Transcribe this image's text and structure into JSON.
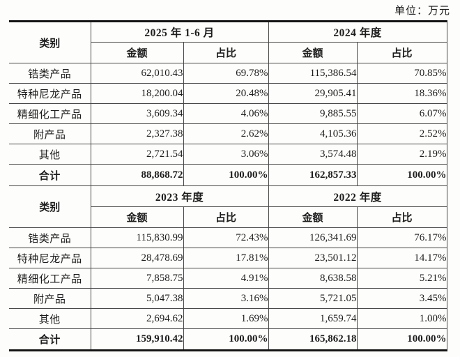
{
  "unit_label": "单位：万元",
  "tables": [
    {
      "category_header": "类别",
      "amount_header": "金额",
      "ratio_header": "占比",
      "periods": [
        {
          "label": "2025 年 1-6 月"
        },
        {
          "label": "2024 年度"
        }
      ],
      "rows": [
        {
          "category": "锆类产品",
          "p1_amount": "62,010.43",
          "p1_ratio": "69.78%",
          "p2_amount": "115,386.54",
          "p2_ratio": "70.85%"
        },
        {
          "category": "特种尼龙产品",
          "p1_amount": "18,200.04",
          "p1_ratio": "20.48%",
          "p2_amount": "29,905.41",
          "p2_ratio": "18.36%"
        },
        {
          "category": "精细化工产品",
          "p1_amount": "3,609.34",
          "p1_ratio": "4.06%",
          "p2_amount": "9,885.55",
          "p2_ratio": "6.07%"
        },
        {
          "category": "附产品",
          "p1_amount": "2,327.38",
          "p1_ratio": "2.62%",
          "p2_amount": "4,105.36",
          "p2_ratio": "2.52%"
        },
        {
          "category": "其他",
          "p1_amount": "2,721.54",
          "p1_ratio": "3.06%",
          "p2_amount": "3,574.48",
          "p2_ratio": "2.19%"
        }
      ],
      "total": {
        "category": "合计",
        "p1_amount": "88,868.72",
        "p1_ratio": "100.00%",
        "p2_amount": "162,857.33",
        "p2_ratio": "100.00%"
      }
    },
    {
      "category_header": "类别",
      "amount_header": "金额",
      "ratio_header": "占比",
      "periods": [
        {
          "label": "2023 年度"
        },
        {
          "label": "2022 年度"
        }
      ],
      "rows": [
        {
          "category": "锆类产品",
          "p1_amount": "115,830.99",
          "p1_ratio": "72.43%",
          "p2_amount": "126,341.69",
          "p2_ratio": "76.17%"
        },
        {
          "category": "特种尼龙产品",
          "p1_amount": "28,478.69",
          "p1_ratio": "17.81%",
          "p2_amount": "23,501.12",
          "p2_ratio": "14.17%"
        },
        {
          "category": "精细化工产品",
          "p1_amount": "7,858.75",
          "p1_ratio": "4.91%",
          "p2_amount": "8,638.58",
          "p2_ratio": "5.21%"
        },
        {
          "category": "附产品",
          "p1_amount": "5,047.38",
          "p1_ratio": "3.16%",
          "p2_amount": "5,721.05",
          "p2_ratio": "3.45%"
        },
        {
          "category": "其他",
          "p1_amount": "2,694.62",
          "p1_ratio": "1.69%",
          "p2_amount": "1,659.74",
          "p2_ratio": "1.00%"
        }
      ],
      "total": {
        "category": "合计",
        "p1_amount": "159,910.42",
        "p1_ratio": "100.00%",
        "p2_amount": "165,862.18",
        "p2_ratio": "100.00%"
      }
    }
  ]
}
